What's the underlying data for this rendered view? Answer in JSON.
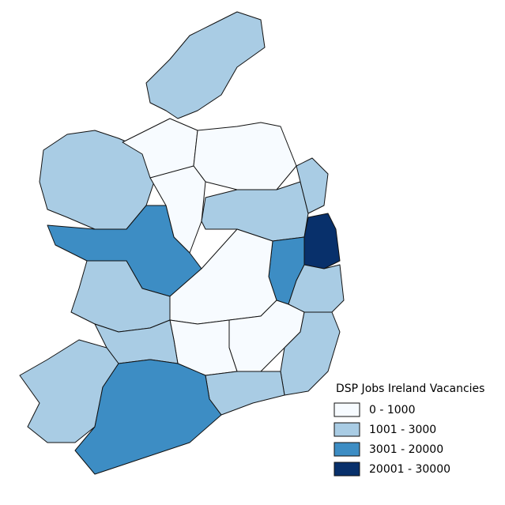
{
  "legend": {
    "title": "DSP Jobs Ireland Vacancies",
    "items": [
      {
        "label": "0 - 1000",
        "color": "#f7fbff"
      },
      {
        "label": "1001 - 3000",
        "color": "#a9cce4"
      },
      {
        "label": "3001 - 20000",
        "color": "#3d8dc4"
      },
      {
        "label": "20001 - 30000",
        "color": "#08306b"
      }
    ]
  }
}
